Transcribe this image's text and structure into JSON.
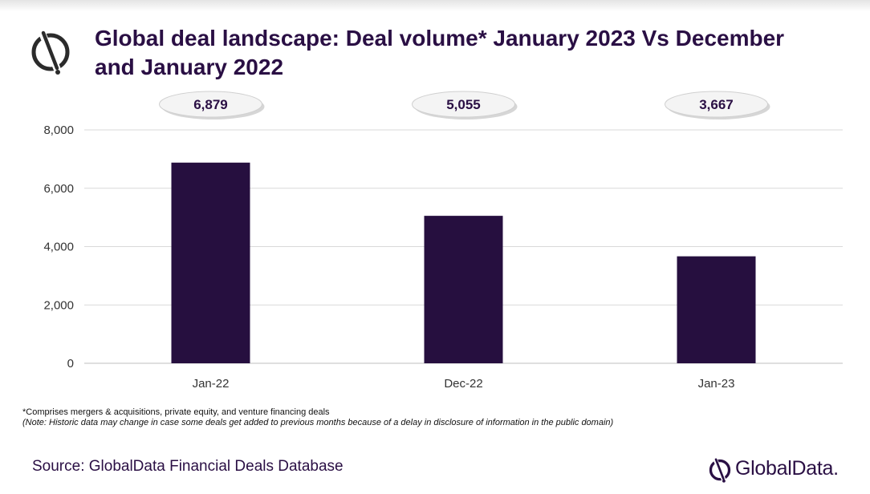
{
  "title": "Global deal landscape: Deal volume* January 2023 Vs December and January 2022",
  "logo": {
    "icon": "globaldata-mark-icon"
  },
  "chart_data": {
    "type": "bar",
    "title": "",
    "xlabel": "",
    "ylabel": "",
    "categories": [
      "Jan-22",
      "Dec-22",
      "Jan-23"
    ],
    "values": [
      6879,
      5055,
      3667
    ],
    "data_labels": [
      "6,879",
      "5,055",
      "3,667"
    ],
    "ylim": [
      0,
      8000
    ],
    "yticks": [
      0,
      2000,
      4000,
      6000,
      8000
    ],
    "ytick_labels": [
      "0",
      "2,000",
      "4,000",
      "6,000",
      "8,000"
    ],
    "grid": true,
    "legend": "none",
    "bar_color": "#260f3f",
    "grid_color": "#d9d9d9"
  },
  "footnote": "*Comprises mergers & acquisitions, private equity, and venture financing deals",
  "note": "(Note: Historic data may change in case some deals get added to previous months because of a delay in disclosure of information in the public domain)",
  "source": "Source: GlobalData Financial Deals Database",
  "brand": {
    "name": "GlobalData.",
    "icon": "globaldata-mark-icon"
  },
  "colors": {
    "brand": "#2a0f44"
  }
}
